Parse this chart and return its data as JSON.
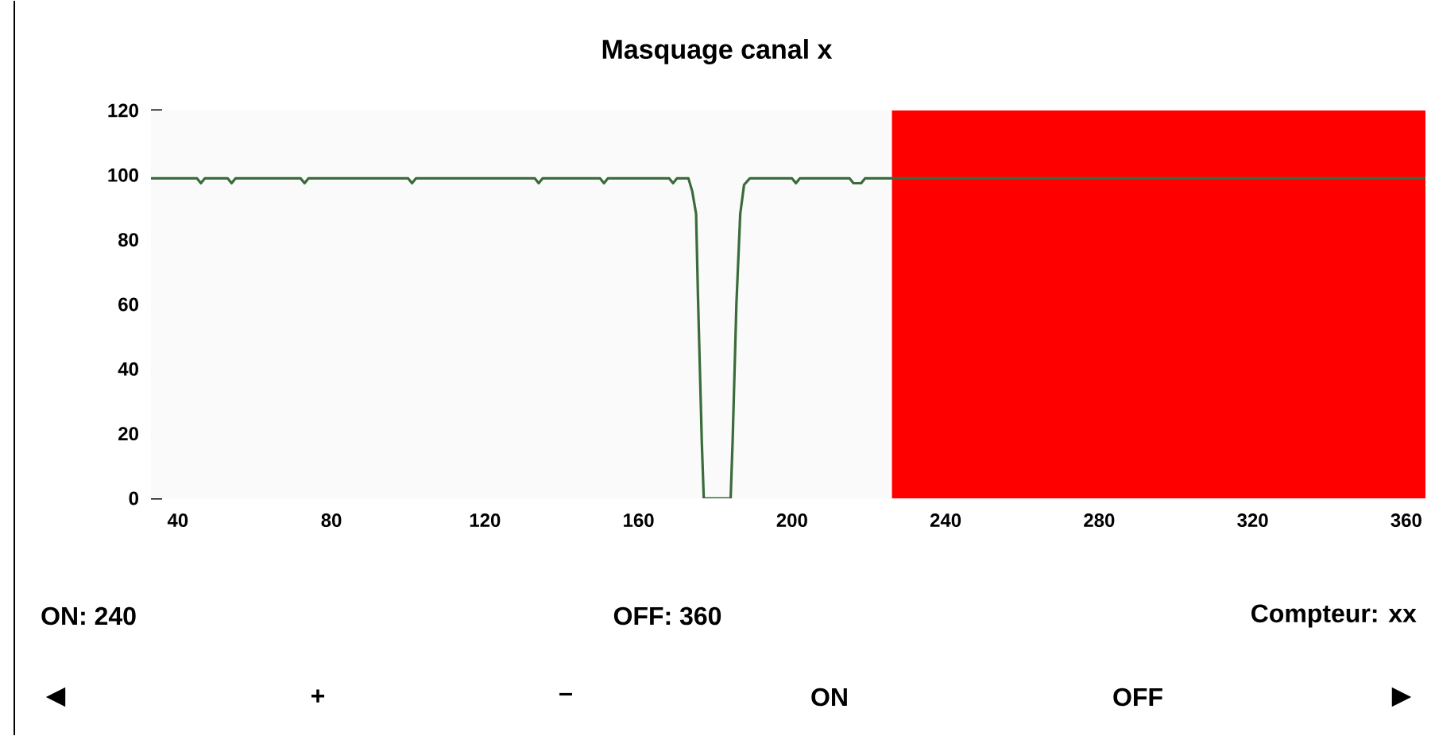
{
  "chart_data": {
    "type": "line",
    "title": "Masquage canal x",
    "x": [
      33,
      45,
      46,
      47,
      53,
      54,
      55,
      72,
      73,
      74,
      100,
      101,
      102,
      133,
      134,
      135,
      150,
      151,
      152,
      168,
      169,
      170,
      173,
      174,
      175,
      175.5,
      176.5,
      177,
      184,
      184.5,
      185.5,
      186.5,
      187.5,
      189,
      200,
      201,
      202,
      215,
      216,
      218,
      219,
      226,
      365
    ],
    "series": [
      {
        "color": "#3a6b3a",
        "values": [
          99,
          99,
          97.5,
          99,
          99,
          97.5,
          99,
          99,
          97.5,
          99,
          99,
          97.5,
          99,
          99,
          97.5,
          99,
          99,
          97.5,
          99,
          99,
          97.5,
          99,
          99,
          95,
          88,
          62,
          17,
          0,
          0,
          17,
          60,
          88,
          97,
          99,
          99,
          97.5,
          99,
          99,
          97.5,
          97.5,
          99,
          99,
          99
        ]
      }
    ],
    "xlim": [
      33,
      365
    ],
    "ylim": [
      0,
      120
    ],
    "xticks": [
      40,
      80,
      120,
      160,
      200,
      240,
      280,
      320,
      360
    ],
    "yticks": [
      0,
      20,
      40,
      60,
      80,
      100,
      120
    ],
    "bands": [
      {
        "axis": "x",
        "from": 226,
        "to": 365,
        "color": "#ff0000"
      }
    ],
    "grid": false,
    "marker": "none",
    "line_style": "solid",
    "annotations": [
      "ON: 240",
      "OFF: 360",
      "Compteur: xx",
      "◀",
      "+",
      "–",
      "ON",
      "OFF",
      "▶"
    ]
  }
}
